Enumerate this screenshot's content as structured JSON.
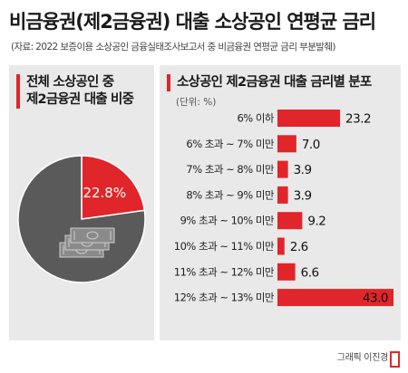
{
  "header": {
    "title": "비금융권(제2금융권) 대출 소상공인 연평균 금리",
    "source": "(자료: 2022 보증이용 소상공인 금융실태조사보고서 중 비금융권 연평균 금리 부분발췌)"
  },
  "pie_panel": {
    "title_line1": "전체 소상공인 중",
    "title_line2": "제2금융권 대출 비중"
  },
  "bar_panel": {
    "title": "소상공인 제2금융권 대출 금리별 분포",
    "unit": "(단위: %)"
  },
  "colors": {
    "accent": "#e0262a",
    "gray": "#5a5a5a",
    "panel": "#e9e9e9"
  },
  "chart_data": [
    {
      "type": "pie",
      "slices": [
        {
          "label": "22.8%",
          "value": 22.8,
          "color": "#e0262a"
        },
        {
          "label": "",
          "value": 77.2,
          "color": "#5a5a5a"
        }
      ]
    },
    {
      "type": "bar",
      "orientation": "horizontal",
      "title": "소상공인 제2금융권 대출 금리별 분포",
      "unit": "(단위: %)",
      "categories": [
        "6% 이하",
        "6% 초과 ~ 7% 미만",
        "7% 초과 ~ 8% 미만",
        "8% 초과 ~ 9% 미만",
        "9% 초과 ~ 10% 미만",
        "10% 초과 ~ 11% 미만",
        "11% 초과 ~ 12% 미만",
        "12% 초과 ~ 13% 미만"
      ],
      "values": [
        23.2,
        7.0,
        3.9,
        3.9,
        9.2,
        2.6,
        6.6,
        43.0
      ],
      "value_labels": [
        "23.2",
        "7.0",
        "3.9",
        "3.9",
        "9.2",
        "2.6",
        "6.6",
        "43.0"
      ],
      "xlim": [
        0,
        43.0
      ]
    }
  ],
  "footer": {
    "credit": "그래픽 이진경"
  }
}
